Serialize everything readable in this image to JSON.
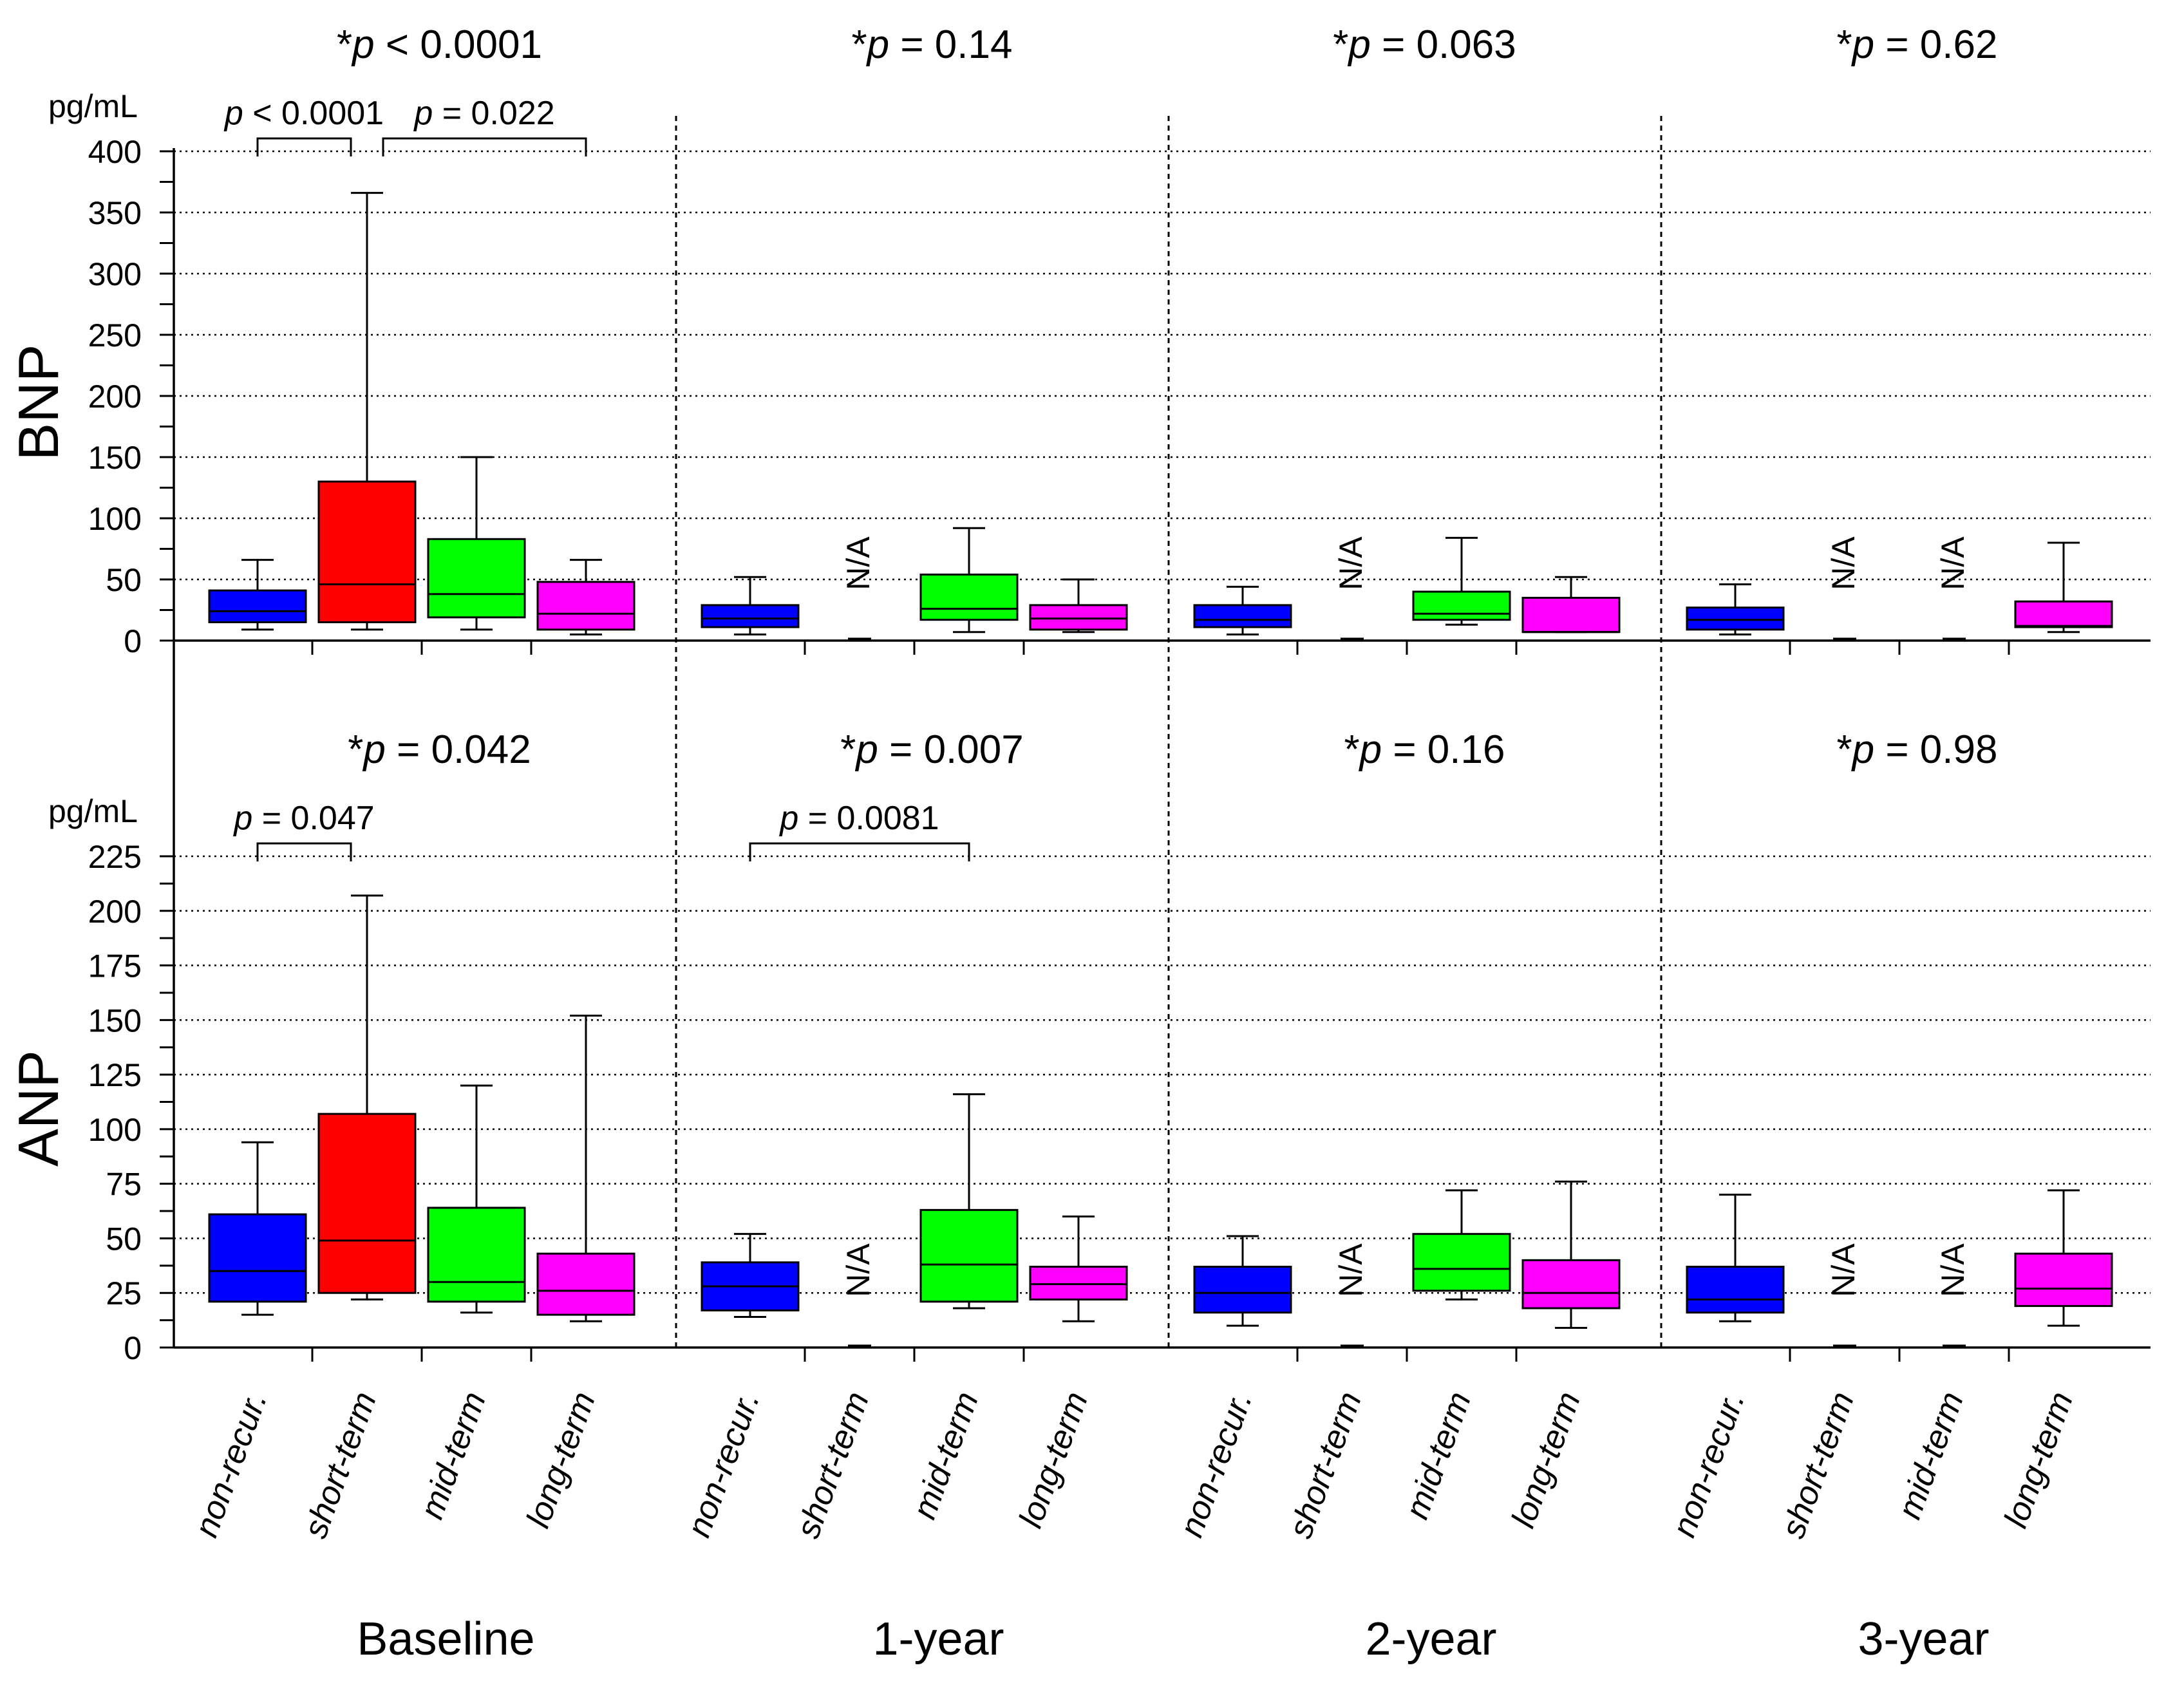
{
  "chart_data": {
    "type": "box",
    "categories": [
      "non-recur.",
      "short-term",
      "mid-term",
      "long-term"
    ],
    "groups": [
      "Baseline",
      "1-year",
      "2-year",
      "3-year"
    ],
    "colors": {
      "non-recur.": "#0000ff",
      "short-term": "#ff0000",
      "mid-term": "#00ff00",
      "long-term": "#ff00ff"
    },
    "panels": [
      {
        "name": "BNP",
        "ylabel": "BNP",
        "unit": "pg/mL",
        "ylim": [
          0,
          400
        ],
        "yticks": [
          0,
          50,
          100,
          150,
          200,
          250,
          300,
          350,
          400
        ],
        "ytick_labels": [
          "0",
          "50",
          "100",
          "150",
          "200",
          "250",
          "300",
          "350",
          "400"
        ],
        "overall_p": [
          "*p < 0.0001",
          "*p = 0.14",
          "*p = 0.063",
          "*p = 0.62"
        ],
        "brackets": [
          {
            "group": 0,
            "from": 0,
            "to": 1,
            "label_p": "p",
            "label_rest": " < 0.0001"
          },
          {
            "group": 0,
            "from": 1,
            "to": 3,
            "label_p": "p",
            "label_rest": " = 0.022"
          }
        ],
        "series": [
          [
            {
              "min": 9,
              "q1": 15,
              "median": 24,
              "q3": 41,
              "max": 66
            },
            {
              "min": 9,
              "q1": 15,
              "median": 46,
              "q3": 130,
              "max": 366
            },
            {
              "min": 9,
              "q1": 19,
              "median": 38,
              "q3": 83,
              "max": 150
            },
            {
              "min": 5,
              "q1": 9,
              "median": 22,
              "q3": 48,
              "max": 66
            }
          ],
          [
            {
              "min": 5,
              "q1": 11,
              "median": 18,
              "q3": 29,
              "max": 52
            },
            null,
            {
              "min": 7,
              "q1": 17,
              "median": 26,
              "q3": 54,
              "max": 92
            },
            {
              "min": 7,
              "q1": 9,
              "median": 18,
              "q3": 29,
              "max": 50
            }
          ],
          [
            {
              "min": 5,
              "q1": 11,
              "median": 17,
              "q3": 29,
              "max": 44
            },
            null,
            {
              "min": 13,
              "q1": 17,
              "median": 22,
              "q3": 40,
              "max": 84
            },
            {
              "min": 7,
              "q1": 7,
              "median": 7,
              "q3": 35,
              "max": 52
            }
          ],
          [
            {
              "min": 5,
              "q1": 9,
              "median": 17,
              "q3": 27,
              "max": 46
            },
            null,
            null,
            {
              "min": 7,
              "q1": 11,
              "median": 12,
              "q3": 32,
              "max": 80
            }
          ]
        ]
      },
      {
        "name": "ANP",
        "ylabel": "ANP",
        "unit": "pg/mL",
        "ylim": [
          0,
          225
        ],
        "yticks": [
          0,
          25,
          50,
          75,
          100,
          125,
          150,
          175,
          200,
          225
        ],
        "ytick_labels": [
          "0",
          "25",
          "50",
          "75",
          "100",
          "125",
          "150",
          "175",
          "200",
          "225"
        ],
        "overall_p": [
          "*p = 0.042",
          "*p = 0.007",
          "*p = 0.16",
          "*p = 0.98"
        ],
        "brackets": [
          {
            "group": 0,
            "from": 0,
            "to": 1,
            "label_p": "p",
            "label_rest": " = 0.047"
          },
          {
            "group": 1,
            "from": 0,
            "to": 2,
            "label_p": "p",
            "label_rest": " = 0.0081"
          }
        ],
        "series": [
          [
            {
              "min": 15,
              "q1": 21,
              "median": 35,
              "q3": 61,
              "max": 94
            },
            {
              "min": 22,
              "q1": 25,
              "median": 49,
              "q3": 107,
              "max": 207
            },
            {
              "min": 16,
              "q1": 21,
              "median": 30,
              "q3": 64,
              "max": 120
            },
            {
              "min": 12,
              "q1": 15,
              "median": 26,
              "q3": 43,
              "max": 152
            }
          ],
          [
            {
              "min": 14,
              "q1": 17,
              "median": 28,
              "q3": 39,
              "max": 52
            },
            null,
            {
              "min": 18,
              "q1": 21,
              "median": 38,
              "q3": 63,
              "max": 116
            },
            {
              "min": 12,
              "q1": 22,
              "median": 29,
              "q3": 37,
              "max": 60
            }
          ],
          [
            {
              "min": 10,
              "q1": 16,
              "median": 25,
              "q3": 37,
              "max": 51
            },
            null,
            {
              "min": 22,
              "q1": 26,
              "median": 36,
              "q3": 52,
              "max": 72
            },
            {
              "min": 9,
              "q1": 18,
              "median": 25,
              "q3": 40,
              "max": 76
            }
          ],
          [
            {
              "min": 12,
              "q1": 16,
              "median": 22,
              "q3": 37,
              "max": 70
            },
            null,
            null,
            {
              "min": 10,
              "q1": 19,
              "median": 27,
              "q3": 43,
              "max": 72
            }
          ]
        ]
      }
    ],
    "na_label": "N/A",
    "na_cells": [
      {
        "panel": 0,
        "group": 1,
        "cat": 1
      },
      {
        "panel": 0,
        "group": 2,
        "cat": 1
      },
      {
        "panel": 0,
        "group": 3,
        "cat": 1
      },
      {
        "panel": 0,
        "group": 3,
        "cat": 2
      },
      {
        "panel": 1,
        "group": 1,
        "cat": 1
      },
      {
        "panel": 1,
        "group": 2,
        "cat": 1
      },
      {
        "panel": 1,
        "group": 3,
        "cat": 1
      },
      {
        "panel": 1,
        "group": 3,
        "cat": 2
      }
    ]
  }
}
